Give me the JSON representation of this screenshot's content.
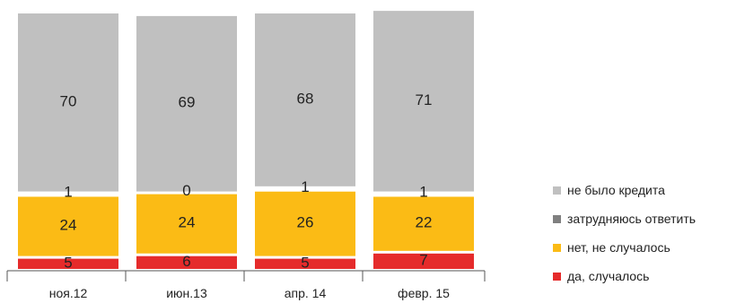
{
  "chart_data": {
    "type": "bar",
    "stacked": true,
    "categories": [
      "ноя.12",
      "июн.13",
      "апр. 14",
      "февр. 15"
    ],
    "series": [
      {
        "name": "да, случалось",
        "values": [
          5,
          6,
          5,
          7
        ],
        "color": "#e52b2b"
      },
      {
        "name": "нет, не случалось",
        "values": [
          24,
          24,
          26,
          22
        ],
        "color": "#fbbb15"
      },
      {
        "name": "затрудняюсь ответить",
        "values": [
          1,
          0,
          1,
          1
        ],
        "color": "#808080"
      },
      {
        "name": "не было кредита",
        "values": [
          70,
          69,
          68,
          71
        ],
        "color": "#c0c0c0"
      }
    ],
    "legend_order": [
      "не было кредита",
      "затрудняюсь ответить",
      "нет, не случалось",
      "да, случалось"
    ],
    "legend_position": "right",
    "ylim": [
      0,
      100
    ],
    "grid": false
  }
}
